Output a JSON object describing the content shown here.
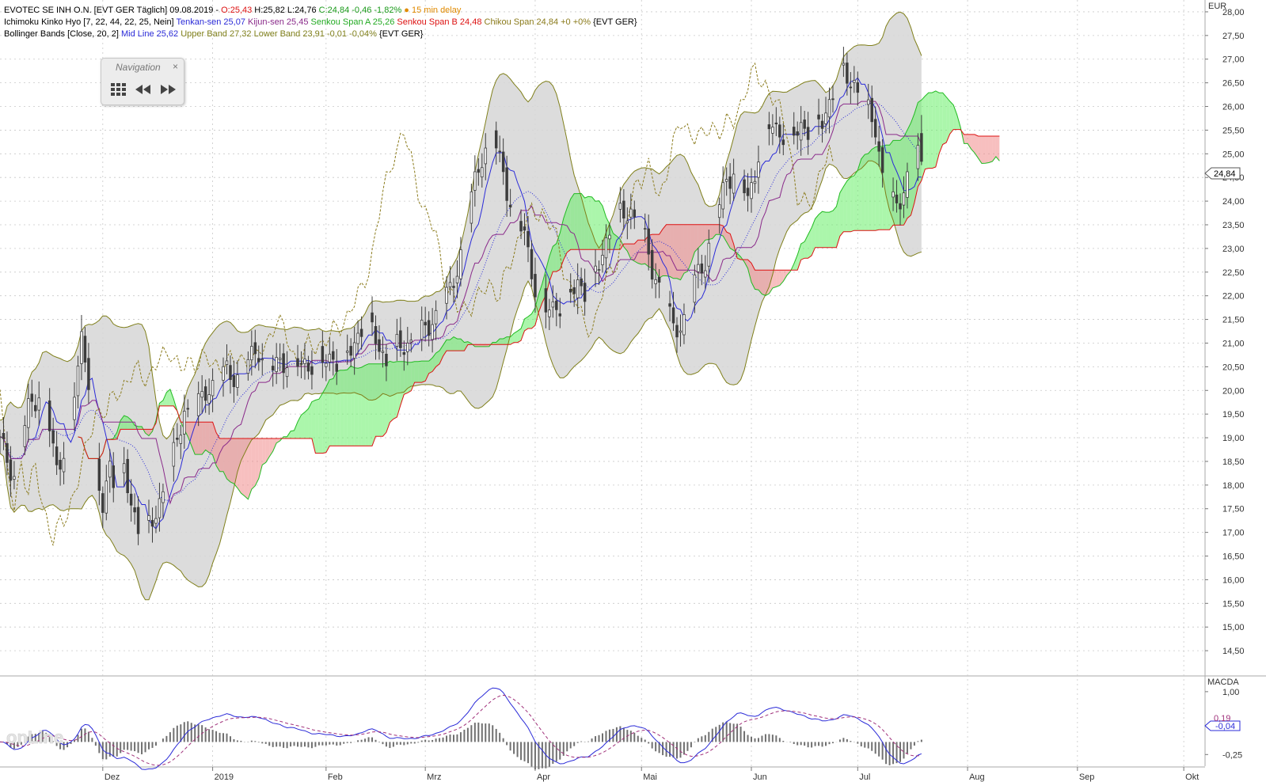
{
  "header": {
    "line1": {
      "name": "EVOTEC SE INH O.N. [EVT GER Täglich] 09.08.2019 - ",
      "open": "O:25,43",
      "high": "H:25,82",
      "low": "L:24,76",
      "close": "C:24,84 -0,46 -1,82%",
      "delay": "● 15 min delay"
    },
    "line2": {
      "name": "Ichimoku Kinko Hyo [7, 22, 44, 22, 25, Nein]",
      "tenkan": "Tenkan-sen 25,07",
      "kijun": "Kijun-sen 25,45",
      "spanA": "Senkou Span A 25,26",
      "spanB": "Senkou Span B 24,48",
      "chikou": "Chikou Span 24,84 +0 +0%",
      "suffix": "{EVT GER}"
    },
    "line3": {
      "name": "Bollinger Bands [Close, 20, 2]",
      "mid": "Mid Line 25,62",
      "upper": "Upper Band 27,32",
      "lower": "Lower Band 23,91 -0,01 -0,04%",
      "suffix": "{EVT GER}"
    }
  },
  "navigation": {
    "title": "Navigation",
    "close": "×"
  },
  "logo": "onLine",
  "colors": {
    "candle": "#3c3c3c",
    "tenkan": "#2b2bd8",
    "kijun": "#8a2a8a",
    "spanA": "#22bb22",
    "spanB": "#dd1111",
    "chikou": "#8a7a1a",
    "bollinger": "#7f7f1a",
    "bbFill": "#d6d6d6",
    "cloudUp": "#66ee66",
    "cloudDown": "#f08a8a",
    "macd": "#2b2bd8",
    "signal": "#a0307a",
    "hist": "#707070"
  },
  "chart_data": [
    {
      "type": "candlestick",
      "title": "EVOTEC SE INH O.N.",
      "currency": "EUR",
      "y_unit_label": "EUR",
      "ylim": [
        14.0,
        28.25
      ],
      "y_ticks": [
        "14,50",
        "15,00",
        "15,50",
        "16,00",
        "16,50",
        "17,00",
        "17,50",
        "18,00",
        "18,50",
        "19,00",
        "19,50",
        "20,00",
        "20,50",
        "21,00",
        "21,50",
        "22,00",
        "22,50",
        "23,00",
        "23,50",
        "24,00",
        "24,50",
        "25,00",
        "25,50",
        "26,00",
        "26,50",
        "27,00",
        "27,50",
        "28,00"
      ],
      "x_ticks": [
        {
          "label": "Dez",
          "day": 29
        },
        {
          "label": "2019",
          "day": 60
        },
        {
          "label": "Feb",
          "day": 92
        },
        {
          "label": "Mrz",
          "day": 120
        },
        {
          "label": "Apr",
          "day": 151
        },
        {
          "label": "Mai",
          "day": 181
        },
        {
          "label": "Jun",
          "day": 212
        },
        {
          "label": "Jul",
          "day": 242
        },
        {
          "label": "Aug",
          "day": 273
        },
        {
          "label": "Sep",
          "day": 304
        },
        {
          "label": "Okt",
          "day": 334
        }
      ],
      "x_range_days": [
        0,
        340
      ],
      "last_price_label": "24,84",
      "last_price": 24.84,
      "close_anchors": [
        [
          0,
          18.9
        ],
        [
          4,
          18.2
        ],
        [
          8,
          19.6
        ],
        [
          12,
          20.1
        ],
        [
          16,
          18.3
        ],
        [
          20,
          19.3
        ],
        [
          23,
          21.1
        ],
        [
          25,
          20.3
        ],
        [
          27,
          18.2
        ],
        [
          29,
          17.5
        ],
        [
          31,
          18.5
        ],
        [
          33,
          17.9
        ],
        [
          35,
          18.3
        ],
        [
          37,
          17.6
        ],
        [
          40,
          16.9
        ],
        [
          43,
          17.2
        ],
        [
          46,
          17.9
        ],
        [
          49,
          18.6
        ],
        [
          52,
          19.6
        ],
        [
          55,
          19.5
        ],
        [
          58,
          20.0
        ],
        [
          61,
          20.2
        ],
        [
          64,
          20.4
        ],
        [
          67,
          20.3
        ],
        [
          70,
          20.6
        ],
        [
          73,
          20.9
        ],
        [
          76,
          20.4
        ],
        [
          79,
          20.6
        ],
        [
          82,
          20.7
        ],
        [
          85,
          20.5
        ],
        [
          88,
          20.6
        ],
        [
          91,
          20.6
        ],
        [
          94,
          20.7
        ],
        [
          97,
          20.6
        ],
        [
          100,
          21.0
        ],
        [
          103,
          21.5
        ],
        [
          106,
          21.1
        ],
        [
          109,
          20.6
        ],
        [
          112,
          20.9
        ],
        [
          115,
          21.0
        ],
        [
          118,
          21.1
        ],
        [
          121,
          21.4
        ],
        [
          124,
          21.7
        ],
        [
          127,
          22.1
        ],
        [
          130,
          22.9
        ],
        [
          133,
          24.1
        ],
        [
          136,
          25.0
        ],
        [
          139,
          25.4
        ],
        [
          142,
          24.6
        ],
        [
          145,
          23.7
        ],
        [
          148,
          23.3
        ],
        [
          151,
          22.2
        ],
        [
          154,
          21.7
        ],
        [
          157,
          21.8
        ],
        [
          160,
          21.9
        ],
        [
          163,
          22.3
        ],
        [
          166,
          22.0
        ],
        [
          169,
          22.7
        ],
        [
          172,
          23.4
        ],
        [
          175,
          23.7
        ],
        [
          178,
          23.8
        ],
        [
          181,
          23.4
        ],
        [
          184,
          22.6
        ],
        [
          187,
          22.0
        ],
        [
          190,
          21.3
        ],
        [
          193,
          21.5
        ],
        [
          196,
          22.3
        ],
        [
          199,
          22.8
        ],
        [
          202,
          23.6
        ],
        [
          205,
          24.5
        ],
        [
          208,
          24.7
        ],
        [
          211,
          24.0
        ],
        [
          214,
          25.0
        ],
        [
          217,
          25.6
        ],
        [
          220,
          25.5
        ],
        [
          223,
          25.3
        ],
        [
          226,
          25.6
        ],
        [
          229,
          25.5
        ],
        [
          232,
          25.7
        ],
        [
          235,
          26.3
        ],
        [
          238,
          26.7
        ],
        [
          241,
          26.5
        ],
        [
          244,
          26.0
        ],
        [
          247,
          25.6
        ],
        [
          250,
          24.0
        ],
        [
          253,
          23.9
        ],
        [
          256,
          24.5
        ],
        [
          259,
          25.0
        ],
        [
          260,
          24.84
        ]
      ]
    },
    {
      "type": "line",
      "title": "MACDA",
      "ylim": [
        -0.45,
        1.25
      ],
      "y_ticks": [
        "1,00",
        "0,19",
        "-0,04",
        "-0,25"
      ],
      "last_values": {
        "macd": "-0,04",
        "signal": "0,19"
      }
    }
  ]
}
